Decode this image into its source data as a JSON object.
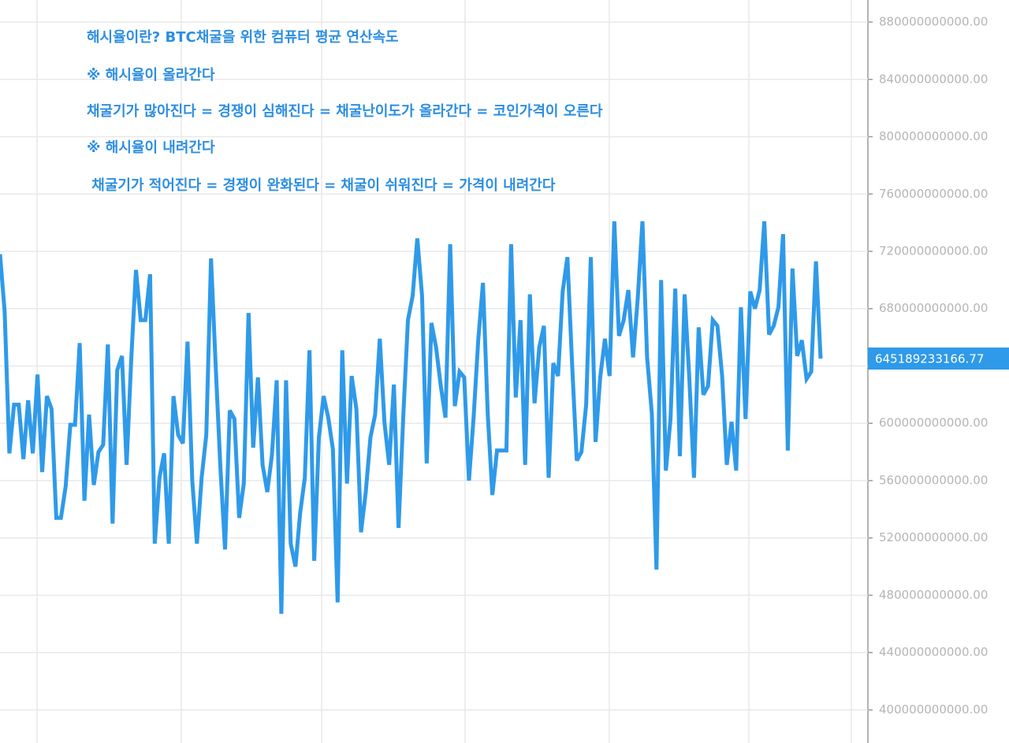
{
  "chart_data": {
    "type": "line",
    "annotations": [
      "해시율이란? BTC채굴을 위한 컴퓨터 평균 연산속도",
      "※ 해시율이 올라간다",
      "채굴기가 많아진다 = 경쟁이 심해진다 = 채굴난이도가 올라간다 = 코인가격이 오른다",
      "※ 해시율이 내려간다",
      " 채굴기가 적어진다 = 경쟁이 완화된다 = 채굴이 쉬워진다 = 가격이 내려간다"
    ],
    "color": "#2f9ae9",
    "values": [
      718000000000,
      678000000000,
      579000000000,
      613000000000,
      613000000000,
      575000000000,
      616000000000,
      579000000000,
      634000000000,
      566000000000,
      619000000000,
      610000000000,
      534000000000,
      534000000000,
      556000000000,
      599000000000,
      599000000000,
      656000000000,
      546000000000,
      606000000000,
      557000000000,
      580000000000,
      585000000000,
      655000000000,
      530000000000,
      637000000000,
      647000000000,
      571000000000,
      646000000000,
      707000000000,
      672000000000,
      672000000000,
      704000000000,
      516000000000,
      562000000000,
      579000000000,
      516000000000,
      619000000000,
      592000000000,
      586000000000,
      657000000000,
      560000000000,
      516000000000,
      562000000000,
      592000000000,
      715000000000,
      640000000000,
      569000000000,
      512000000000,
      609000000000,
      603000000000,
      534000000000,
      558000000000,
      677000000000,
      583000000000,
      632000000000,
      571000000000,
      552000000000,
      578000000000,
      630000000000,
      467000000000,
      630000000000,
      516000000000,
      500000000000,
      537000000000,
      562000000000,
      651000000000,
      504000000000,
      590000000000,
      619000000000,
      604000000000,
      582000000000,
      475000000000,
      651000000000,
      558000000000,
      633000000000,
      610000000000,
      524000000000,
      552000000000,
      590000000000,
      606000000000,
      659000000000,
      600000000000,
      571000000000,
      627000000000,
      527000000000,
      605000000000,
      672000000000,
      689000000000,
      729000000000,
      689000000000,
      572000000000,
      670000000000,
      653000000000,
      626000000000,
      604000000000,
      725000000000,
      612000000000,
      636000000000,
      632000000000,
      560000000000,
      604000000000,
      659000000000,
      698000000000,
      607000000000,
      550000000000,
      581000000000,
      581000000000,
      581000000000,
      725000000000,
      618000000000,
      672000000000,
      571000000000,
      690000000000,
      614000000000,
      653000000000,
      668000000000,
      562000000000,
      642000000000,
      633000000000,
      692000000000,
      716000000000,
      642000000000,
      574000000000,
      580000000000,
      613000000000,
      716000000000,
      587000000000,
      632000000000,
      659000000000,
      633000000000,
      741000000000,
      661000000000,
      672000000000,
      693000000000,
      646000000000,
      687000000000,
      741000000000,
      646000000000,
      607000000000,
      498000000000,
      700000000000,
      567000000000,
      603000000000,
      694000000000,
      577000000000,
      690000000000,
      632000000000,
      562000000000,
      667000000000,
      620000000000,
      626000000000,
      672000000000,
      668000000000,
      633000000000,
      571000000000,
      601000000000,
      567000000000,
      681000000000,
      603000000000,
      692000000000,
      680000000000,
      693000000000,
      741000000000,
      662000000000,
      668000000000,
      681000000000,
      732000000000,
      581000000000,
      708000000000,
      647000000000,
      658000000000,
      631000000000,
      636000000000,
      713000000000,
      645189233166.77
    ],
    "ylim": [
      376900000000,
      895400000000
    ],
    "yticks": [
      {
        "value": 400000000000,
        "label": "400000000000.00"
      },
      {
        "value": 440000000000,
        "label": "440000000000.00"
      },
      {
        "value": 480000000000,
        "label": "480000000000.00"
      },
      {
        "value": 520000000000,
        "label": "520000000000.00"
      },
      {
        "value": 560000000000,
        "label": "560000000000.00"
      },
      {
        "value": 600000000000,
        "label": "600000000000.00"
      },
      {
        "value": 640000000000,
        "label": "640000000000.00"
      },
      {
        "value": 680000000000,
        "label": "680000000000.00"
      },
      {
        "value": 720000000000,
        "label": "720000000000.00"
      },
      {
        "value": 760000000000,
        "label": "760000000000.00"
      },
      {
        "value": 800000000000,
        "label": "800000000000.00"
      },
      {
        "value": 840000000000,
        "label": "840000000000.00"
      },
      {
        "value": 880000000000,
        "label": "880000000000.00"
      }
    ],
    "grid": true
  }
}
